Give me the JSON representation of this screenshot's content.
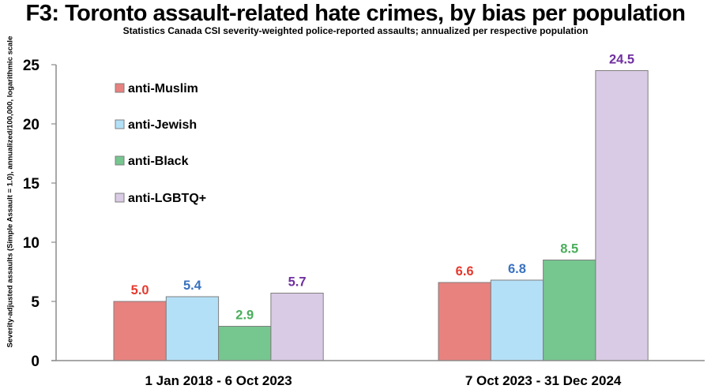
{
  "chart_data": {
    "type": "bar",
    "title": "F3: Toronto assault-related hate crimes, by bias per population",
    "subtitle": "Statistics Canada CSI severity-weighted police-reported assaults; annualized per respective population",
    "xlabel": "",
    "ylabel": "Severity-adjusted assaults (Simple Assault = 1.0), annualized/100,000, logarithmic scale",
    "ylim": [
      0,
      25
    ],
    "yticks": [
      "0",
      "5",
      "10",
      "15",
      "20",
      "25"
    ],
    "ytick_values": [
      0,
      5,
      10,
      15,
      20,
      25
    ],
    "grid": false,
    "legend_position": "top-left",
    "categories": [
      "1 Jan 2018 - 6 Oct 2023",
      "7 Oct 2023 - 31 Dec 2024"
    ],
    "series": [
      {
        "name": "anti-Muslim",
        "values": [
          5.0,
          6.6
        ],
        "labels": [
          "5.0",
          "6.6"
        ],
        "color": "#e8827f",
        "label_color": "#e63a2e"
      },
      {
        "name": "anti-Jewish",
        "values": [
          5.4,
          6.8
        ],
        "labels": [
          "5.4",
          "6.8"
        ],
        "color": "#b3e0f7",
        "label_color": "#3a72c0"
      },
      {
        "name": "anti-Black",
        "values": [
          2.9,
          8.5
        ],
        "labels": [
          "2.9",
          "8.5"
        ],
        "color": "#76c68f",
        "label_color": "#4aad5b"
      },
      {
        "name": "anti-LGBTQ+",
        "values": [
          5.7,
          24.5
        ],
        "labels": [
          "5.7",
          "24.5"
        ],
        "color": "#d9cbe5",
        "label_color": "#7030a0"
      }
    ]
  }
}
